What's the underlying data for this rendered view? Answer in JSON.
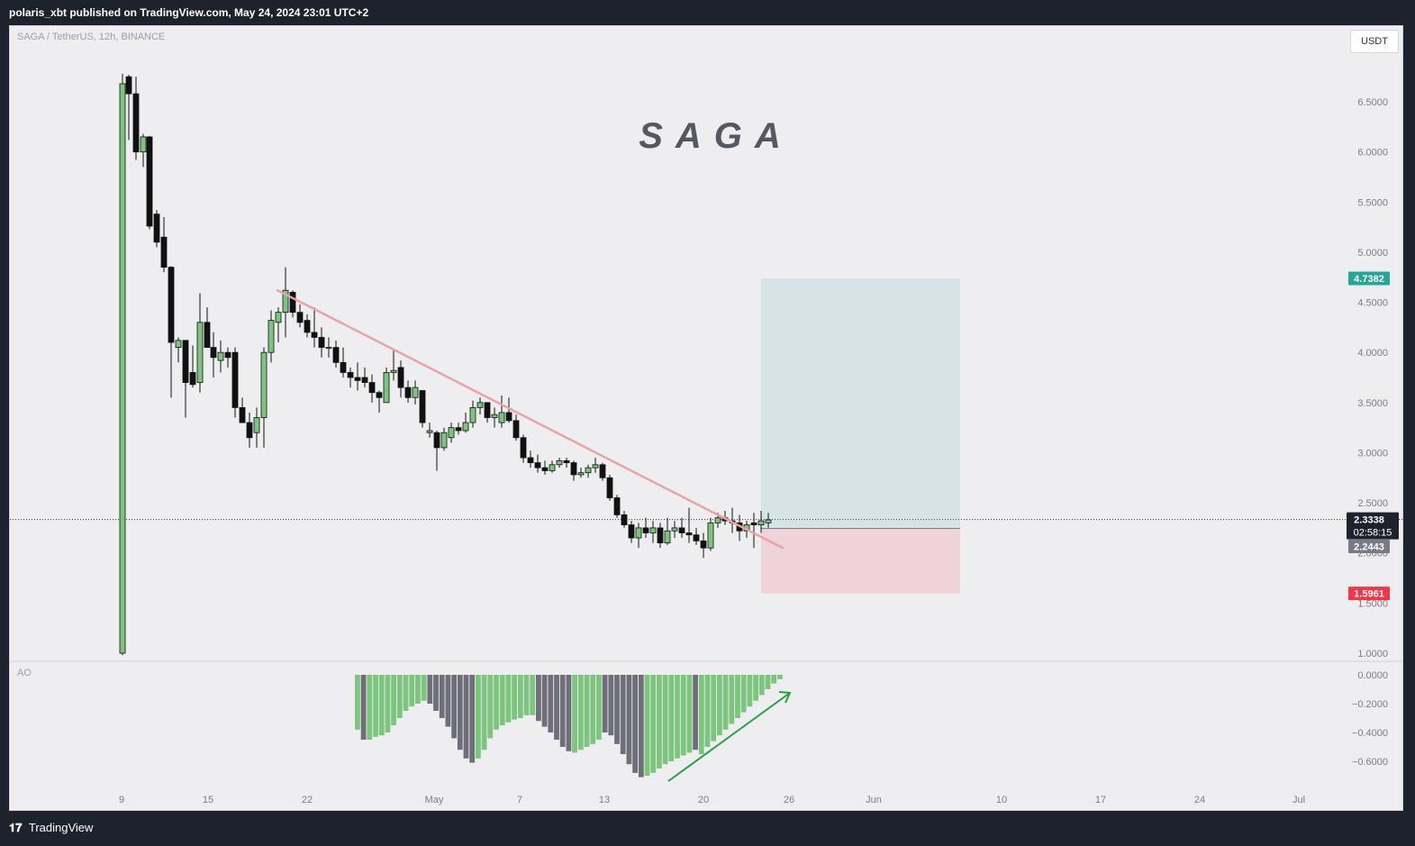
{
  "header": {
    "published": "polaris_xbt published on TradingView.com, May 24, 2024 23:01 UTC+2"
  },
  "chart": {
    "symbol": "SAGA / TetherUS, 12h, BINANCE",
    "watermark": "SAGA",
    "currency": "USDT",
    "indicator": "AO",
    "price_axis": [
      "6.5000",
      "6.0000",
      "5.5000",
      "5.0000",
      "4.5000",
      "4.0000",
      "3.5000",
      "3.0000",
      "2.5000",
      "2.0000",
      "1.5000",
      "1.0000"
    ],
    "ao_axis": [
      "0.0000",
      "−0.2000",
      "−0.4000",
      "−0.6000"
    ],
    "time_axis": [
      "9",
      "15",
      "22",
      "May",
      "7",
      "13",
      "20",
      "26",
      "Jun",
      "10",
      "17",
      "24",
      "Jul"
    ],
    "labels": {
      "target": "4.7382",
      "current": "2.3338",
      "countdown": "02:58:15",
      "entry": "2.2443",
      "stop": "1.5961"
    },
    "colors": {
      "up": "#7dc47f",
      "down": "#111111",
      "target": "#26a69a",
      "stop": "#f23645",
      "entry": "#787b86",
      "trendline": "#e8a3a8",
      "arrow": "#2e9e45"
    }
  },
  "footer": {
    "brand": "TradingView"
  }
}
